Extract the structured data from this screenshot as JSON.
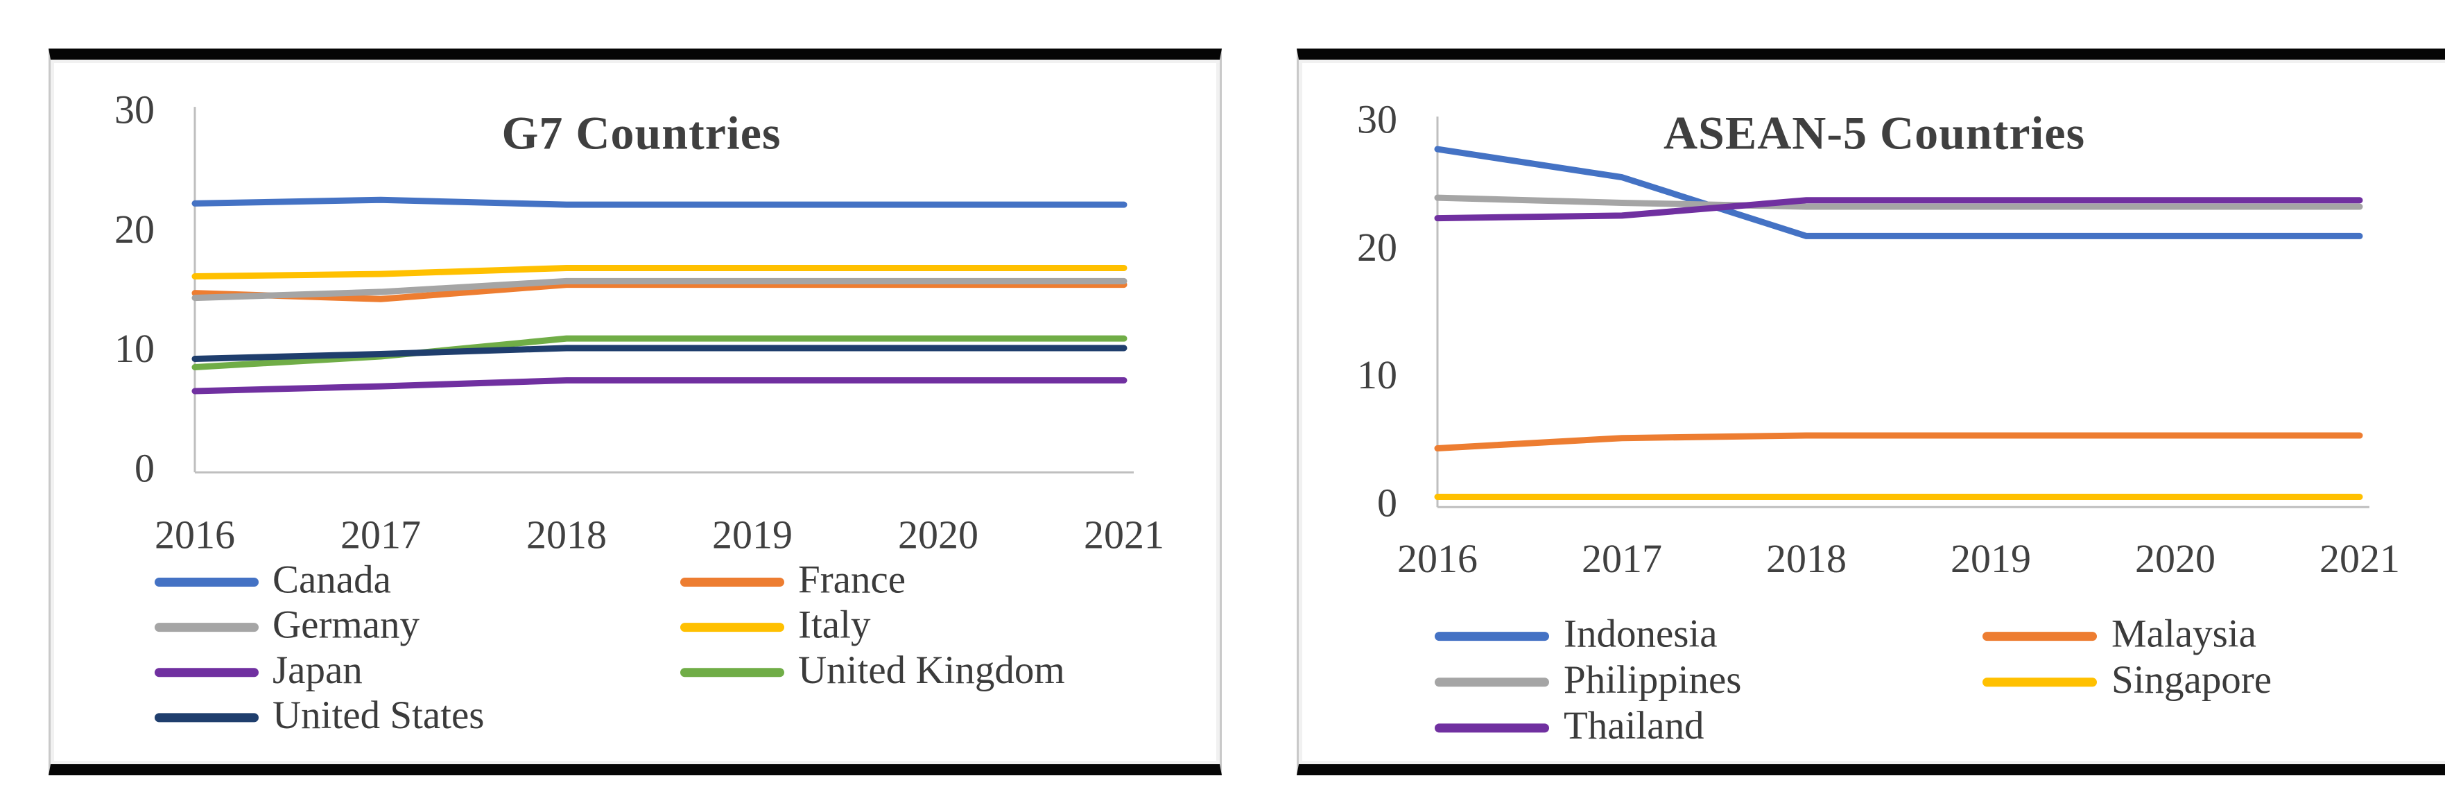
{
  "page": {
    "background": "#ffffff",
    "panel_top_bottom_border_color": "#050505",
    "panel_side_border_color": "#c9c9c9"
  },
  "styles": {
    "title_color": "#3f3f3f",
    "tick_label_color": "#404040",
    "legend_text_color": "#3b3b3b",
    "axis_line_color": "#bfbfbf"
  },
  "chart_data": [
    {
      "type": "line",
      "title": "G7 Countries",
      "x": [
        "2016",
        "2017",
        "2018",
        "2019",
        "2020",
        "2021"
      ],
      "ylim": [
        0,
        30
      ],
      "yticks": [
        30,
        20,
        10,
        0
      ],
      "grid": false,
      "legend_position": "bottom-two-columns",
      "series": [
        {
          "name": "Canada",
          "color": "#4472C4",
          "values": [
            22.5,
            22.8,
            22.4,
            22.4,
            22.4,
            22.4
          ]
        },
        {
          "name": "France",
          "color": "#ED7D31",
          "values": [
            15.0,
            14.5,
            15.7,
            15.7,
            15.7,
            15.7
          ]
        },
        {
          "name": "Germany",
          "color": "#A5A5A5",
          "values": [
            14.6,
            15.1,
            16.0,
            16.0,
            16.0,
            16.0
          ]
        },
        {
          "name": "Italy",
          "color": "#FFC000",
          "values": [
            16.4,
            16.6,
            17.1,
            17.1,
            17.1,
            17.1
          ]
        },
        {
          "name": "Japan",
          "color": "#7030A0",
          "values": [
            6.8,
            7.2,
            7.7,
            7.7,
            7.7,
            7.7
          ]
        },
        {
          "name": "United Kingdom",
          "color": "#70AD47",
          "values": [
            8.8,
            9.7,
            11.2,
            11.2,
            11.2,
            11.2
          ]
        },
        {
          "name": "United States",
          "color": "#1F3E6D",
          "values": [
            9.5,
            9.9,
            10.4,
            10.4,
            10.4,
            10.4
          ]
        }
      ]
    },
    {
      "type": "line",
      "title": "ASEAN-5 Countries",
      "x": [
        "2016",
        "2017",
        "2018",
        "2019",
        "2020",
        "2021"
      ],
      "ylim": [
        0,
        30
      ],
      "yticks": [
        30,
        20,
        10,
        0
      ],
      "grid": false,
      "legend_position": "bottom-two-columns",
      "series": [
        {
          "name": "Indonesia",
          "color": "#4472C4",
          "values": [
            28.0,
            25.8,
            21.2,
            21.2,
            21.2,
            21.2
          ]
        },
        {
          "name": "Malaysia",
          "color": "#ED7D31",
          "values": [
            4.6,
            5.4,
            5.6,
            5.6,
            5.6,
            5.6
          ]
        },
        {
          "name": "Philippines",
          "color": "#A5A5A5",
          "values": [
            24.2,
            23.8,
            23.5,
            23.5,
            23.5,
            23.5
          ]
        },
        {
          "name": "Singapore",
          "color": "#FFC000",
          "values": [
            0.8,
            0.8,
            0.8,
            0.8,
            0.8,
            0.8
          ]
        },
        {
          "name": "Thailand",
          "color": "#7030A0",
          "values": [
            22.6,
            22.8,
            24.0,
            24.0,
            24.0,
            24.0
          ]
        }
      ]
    }
  ]
}
